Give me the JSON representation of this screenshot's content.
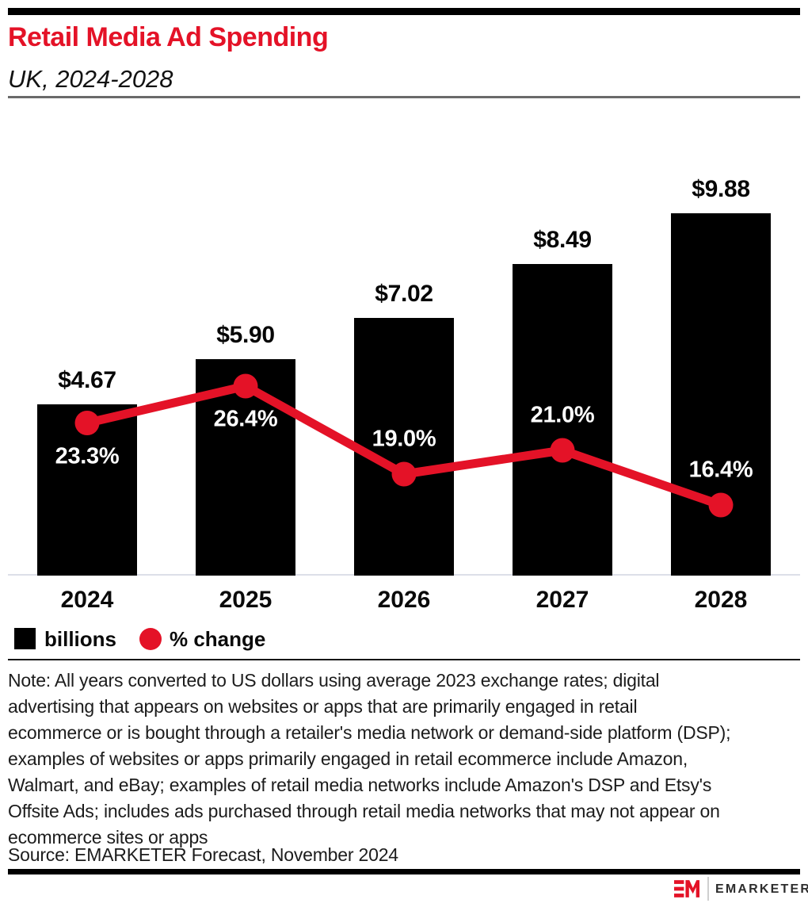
{
  "header": {
    "title": "Retail Media Ad Spending",
    "subtitle": "UK, 2024-2028"
  },
  "chart_data": {
    "type": "bar",
    "title": "Retail Media Ad Spending",
    "subtitle": "UK, 2024-2028",
    "categories": [
      "2024",
      "2025",
      "2026",
      "2027",
      "2028"
    ],
    "series": [
      {
        "name": "billions",
        "type": "bar",
        "values": [
          4.67,
          5.9,
          7.02,
          8.49,
          9.88
        ],
        "labels": [
          "$4.67",
          "$5.90",
          "$7.02",
          "$8.49",
          "$9.88"
        ],
        "color": "#000000"
      },
      {
        "name": "% change",
        "type": "line",
        "values": [
          23.3,
          26.4,
          19.0,
          21.0,
          16.4
        ],
        "labels": [
          "23.3%",
          "26.4%",
          "19.0%",
          "21.0%",
          "16.4%"
        ],
        "color": "#e41227"
      }
    ],
    "legend_position": "bottom-left",
    "grid": false,
    "pct_label_side": [
      "below",
      "below",
      "above",
      "above",
      "above"
    ]
  },
  "legend": {
    "bar_label": "billions",
    "line_label": "% change"
  },
  "note": "Note: All years converted to US dollars using average 2023 exchange rates; digital\nadvertising that appears on websites or apps that are primarily engaged in retail\necommerce or is bought through a retailer's media network or demand-side platform (DSP);\nexamples of websites or apps primarily engaged in retail ecommerce include Amazon,\nWalmart, and eBay; examples of retail media networks include Amazon's DSP and Etsy's\nOffsite Ads; includes ads purchased through retail media networks that may not appear on\necommerce sites or apps",
  "source": "Source: EMARKETER Forecast, November 2024",
  "footer": {
    "brand": "EMARKETER"
  },
  "colors": {
    "accent_red": "#e41227",
    "bar_black": "#000000",
    "baseline_gray": "#dcdfe8",
    "rule_gray": "#6a6a6a"
  }
}
